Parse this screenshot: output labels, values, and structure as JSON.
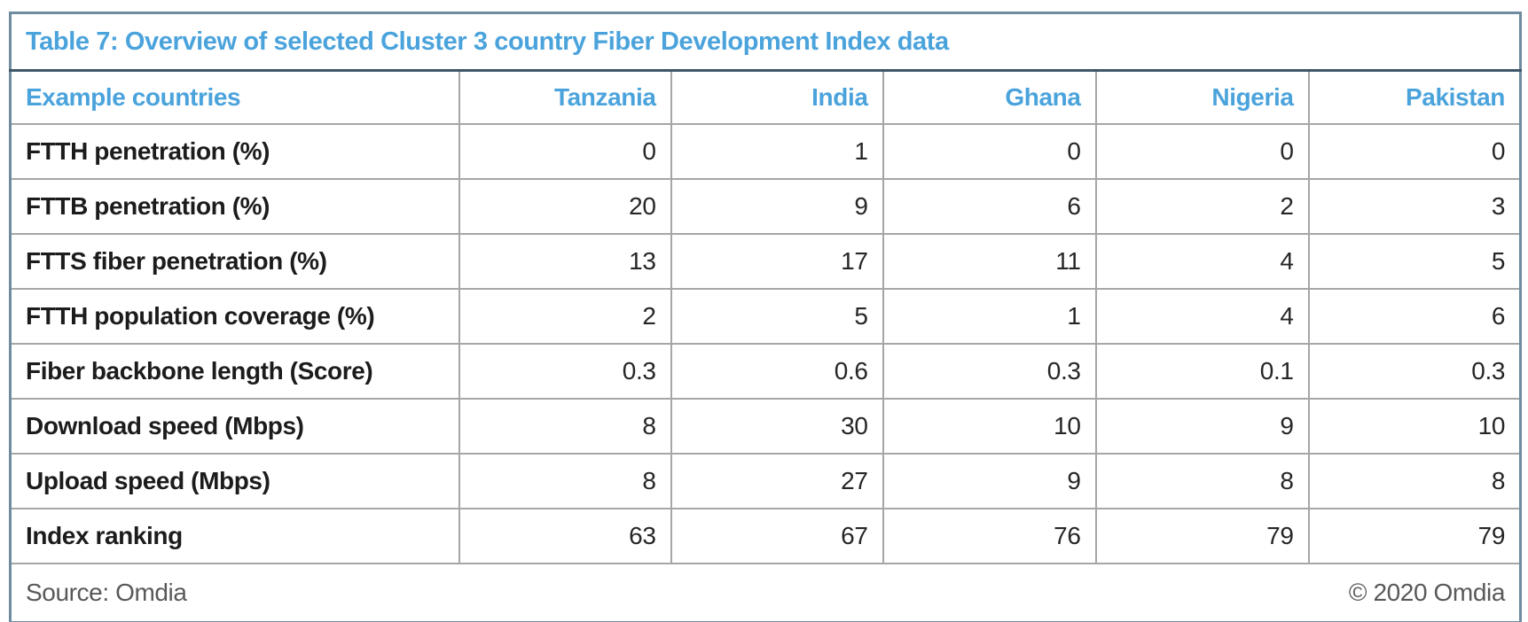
{
  "table": {
    "title": "Table 7: Overview of selected Cluster 3 country Fiber Development Index data",
    "columns": {
      "label_header": "Example countries",
      "countries": [
        "Tanzania",
        "India",
        "Ghana",
        "Nigeria",
        "Pakistan"
      ]
    },
    "rows": [
      {
        "label": "FTTH penetration (%)",
        "values": [
          "0",
          "1",
          "0",
          "0",
          "0"
        ]
      },
      {
        "label": "FTTB penetration (%)",
        "values": [
          "20",
          "9",
          "6",
          "2",
          "3"
        ]
      },
      {
        "label": "FTTS fiber penetration (%)",
        "values": [
          "13",
          "17",
          "11",
          "4",
          "5"
        ]
      },
      {
        "label": "FTTH population coverage (%)",
        "values": [
          "2",
          "5",
          "1",
          "4",
          "6"
        ]
      },
      {
        "label": "Fiber backbone length (Score)",
        "values": [
          "0.3",
          "0.6",
          "0.3",
          "0.1",
          "0.3"
        ]
      },
      {
        "label": "Download speed (Mbps)",
        "values": [
          "8",
          "30",
          "10",
          "9",
          "10"
        ]
      },
      {
        "label": "Upload speed (Mbps)",
        "values": [
          "8",
          "27",
          "9",
          "8",
          "8"
        ]
      },
      {
        "label": "Index ranking",
        "values": [
          "63",
          "67",
          "76",
          "79",
          "79"
        ]
      }
    ],
    "footer": {
      "source": "Source: Omdia",
      "copyright": "© 2020 Omdia"
    },
    "colors": {
      "accent_blue": "#4BA3DC",
      "outer_border": "#6E8CA0",
      "title_rule": "#3F5668",
      "gridline": "#A6A6A6",
      "label_text": "#1C1C1C",
      "value_text": "#262626",
      "footer_text": "#595959"
    }
  },
  "chart_data": {
    "type": "table",
    "title": "Table 7: Overview of selected Cluster 3 country Fiber Development Index data",
    "columns": [
      "Example countries",
      "Tanzania",
      "India",
      "Ghana",
      "Nigeria",
      "Pakistan"
    ],
    "rows": [
      [
        "FTTH penetration (%)",
        0,
        1,
        0,
        0,
        0
      ],
      [
        "FTTB penetration (%)",
        20,
        9,
        6,
        2,
        3
      ],
      [
        "FTTS fiber penetration (%)",
        13,
        17,
        11,
        4,
        5
      ],
      [
        "FTTH population coverage (%)",
        2,
        5,
        1,
        4,
        6
      ],
      [
        "Fiber backbone length (Score)",
        0.3,
        0.6,
        0.3,
        0.1,
        0.3
      ],
      [
        "Download speed (Mbps)",
        8,
        30,
        10,
        9,
        10
      ],
      [
        "Upload speed (Mbps)",
        8,
        27,
        9,
        8,
        8
      ],
      [
        "Index ranking",
        63,
        67,
        76,
        79,
        79
      ]
    ],
    "source": "Source: Omdia",
    "copyright": "© 2020 Omdia"
  }
}
